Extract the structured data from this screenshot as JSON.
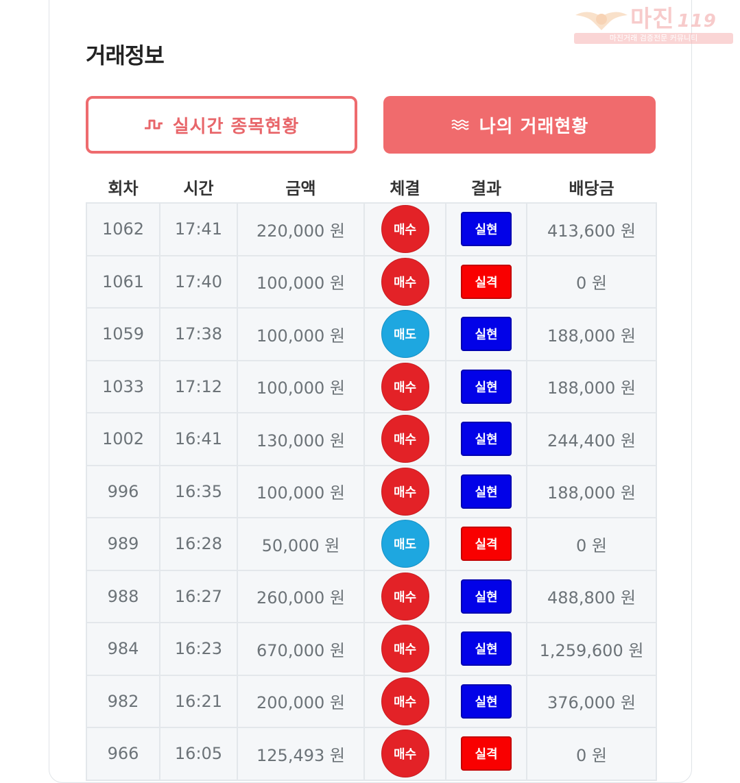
{
  "page": {
    "title": "거래정보"
  },
  "tabs": {
    "live": {
      "label": "실시간 종목현황",
      "icon": "pulse-wave-icon",
      "color": "#e8666a"
    },
    "mine": {
      "label": "나의 거래현황",
      "icon": "triple-wave-icon",
      "color": "#f06b6d"
    }
  },
  "table": {
    "headers": [
      "회차",
      "시간",
      "금액",
      "체결",
      "결과",
      "배당금"
    ],
    "rows": [
      {
        "round": "1062",
        "time": "17:41",
        "amount": "220,000 원",
        "type": "매수",
        "result": "실현",
        "payout": "413,600 원"
      },
      {
        "round": "1061",
        "time": "17:40",
        "amount": "100,000 원",
        "type": "매수",
        "result": "실격",
        "payout": "0 원"
      },
      {
        "round": "1059",
        "time": "17:38",
        "amount": "100,000 원",
        "type": "매도",
        "result": "실현",
        "payout": "188,000 원"
      },
      {
        "round": "1033",
        "time": "17:12",
        "amount": "100,000 원",
        "type": "매수",
        "result": "실현",
        "payout": "188,000 원"
      },
      {
        "round": "1002",
        "time": "16:41",
        "amount": "130,000 원",
        "type": "매수",
        "result": "실현",
        "payout": "244,400 원"
      },
      {
        "round": "996",
        "time": "16:35",
        "amount": "100,000 원",
        "type": "매수",
        "result": "실현",
        "payout": "188,000 원"
      },
      {
        "round": "989",
        "time": "16:28",
        "amount": "50,000 원",
        "type": "매도",
        "result": "실격",
        "payout": "0 원"
      },
      {
        "round": "988",
        "time": "16:27",
        "amount": "260,000 원",
        "type": "매수",
        "result": "실현",
        "payout": "488,800 원"
      },
      {
        "round": "984",
        "time": "16:23",
        "amount": "670,000 원",
        "type": "매수",
        "result": "실현",
        "payout": "1,259,600 원"
      },
      {
        "round": "982",
        "time": "16:21",
        "amount": "200,000 원",
        "type": "매수",
        "result": "실현",
        "payout": "376,000 원"
      },
      {
        "round": "966",
        "time": "16:05",
        "amount": "125,493 원",
        "type": "매수",
        "result": "실격",
        "payout": "0 원"
      }
    ]
  },
  "colors": {
    "buy": "#e32227",
    "sell": "#1ea7e0",
    "hit": "#0202e8",
    "miss": "#f90000"
  },
  "watermark": {
    "text": "마진",
    "text_accent": "119",
    "subtitle": "마진거래 검증전문 커뮤니티",
    "icon": "eagle-emblem-icon"
  }
}
